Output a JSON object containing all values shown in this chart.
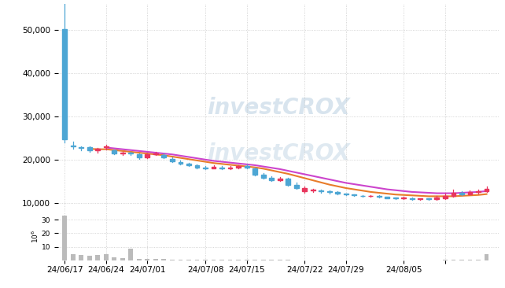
{
  "price_ylim": [
    8000,
    56000
  ],
  "volume_ylim": [
    0,
    36
  ],
  "xtick_positions": [
    0,
    5,
    10,
    17,
    22,
    29,
    34,
    41,
    46
  ],
  "xtick_labels": [
    "24/06/17",
    "24/06/24",
    "24/07/01",
    "24/07/08",
    "24/07/15",
    "24/07/22",
    "24/07/29",
    "24/08/05",
    ""
  ],
  "ytick_price": [
    10000,
    20000,
    30000,
    40000,
    50000
  ],
  "ytick_volume": [
    10,
    20,
    30
  ],
  "background_color": "#ffffff",
  "grid_color": "#c8c8c8",
  "candle_blue": "#4da6d4",
  "candle_red": "#e8365d",
  "volume_color": "#bbbbbb",
  "ma_short_color": "#e87c2a",
  "ma_long_color": "#cc44cc",
  "candles": [
    {
      "x": 0,
      "open": 24800,
      "close": 50200,
      "high": 56500,
      "low": 24000,
      "color": "blue"
    },
    {
      "x": 1,
      "open": 23200,
      "close": 23100,
      "high": 24200,
      "low": 22500,
      "color": "blue"
    },
    {
      "x": 2,
      "open": 22800,
      "close": 22700,
      "high": 23000,
      "low": 22200,
      "color": "blue"
    },
    {
      "x": 3,
      "open": 22800,
      "close": 22100,
      "high": 23000,
      "low": 21800,
      "color": "blue"
    },
    {
      "x": 4,
      "open": 22100,
      "close": 22500,
      "high": 22700,
      "low": 21600,
      "color": "red"
    },
    {
      "x": 5,
      "open": 22800,
      "close": 23000,
      "high": 23400,
      "low": 22400,
      "color": "red"
    },
    {
      "x": 6,
      "open": 22100,
      "close": 21500,
      "high": 22300,
      "low": 21300,
      "color": "blue"
    },
    {
      "x": 7,
      "open": 21500,
      "close": 21600,
      "high": 21800,
      "low": 21100,
      "color": "red"
    },
    {
      "x": 8,
      "open": 21500,
      "close": 21400,
      "high": 21700,
      "low": 21000,
      "color": "blue"
    },
    {
      "x": 9,
      "open": 21200,
      "close": 20600,
      "high": 21400,
      "low": 20200,
      "color": "blue"
    },
    {
      "x": 10,
      "open": 20600,
      "close": 21200,
      "high": 21500,
      "low": 20400,
      "color": "red"
    },
    {
      "x": 11,
      "open": 21300,
      "close": 21500,
      "high": 21800,
      "low": 21100,
      "color": "red"
    },
    {
      "x": 12,
      "open": 21100,
      "close": 20600,
      "high": 21400,
      "low": 20400,
      "color": "blue"
    },
    {
      "x": 13,
      "open": 20200,
      "close": 19600,
      "high": 20500,
      "low": 19400,
      "color": "blue"
    },
    {
      "x": 14,
      "open": 19500,
      "close": 19000,
      "high": 19800,
      "low": 18800,
      "color": "blue"
    },
    {
      "x": 15,
      "open": 19000,
      "close": 18700,
      "high": 19300,
      "low": 18500,
      "color": "blue"
    },
    {
      "x": 16,
      "open": 18700,
      "close": 18200,
      "high": 18900,
      "low": 18000,
      "color": "blue"
    },
    {
      "x": 17,
      "open": 18200,
      "close": 18000,
      "high": 18500,
      "low": 17800,
      "color": "blue"
    },
    {
      "x": 18,
      "open": 18000,
      "close": 18400,
      "high": 18600,
      "low": 17900,
      "color": "red"
    },
    {
      "x": 19,
      "open": 18200,
      "close": 17900,
      "high": 18500,
      "low": 17700,
      "color": "blue"
    },
    {
      "x": 20,
      "open": 17900,
      "close": 18200,
      "high": 18500,
      "low": 17700,
      "color": "red"
    },
    {
      "x": 21,
      "open": 18200,
      "close": 18500,
      "high": 18700,
      "low": 17900,
      "color": "red"
    },
    {
      "x": 22,
      "open": 18500,
      "close": 18200,
      "high": 18800,
      "low": 17900,
      "color": "blue"
    },
    {
      "x": 23,
      "open": 17900,
      "close": 16500,
      "high": 18200,
      "low": 16400,
      "color": "blue"
    },
    {
      "x": 24,
      "open": 16500,
      "close": 15800,
      "high": 16900,
      "low": 15600,
      "color": "blue"
    },
    {
      "x": 25,
      "open": 15800,
      "close": 15200,
      "high": 16200,
      "low": 15000,
      "color": "blue"
    },
    {
      "x": 26,
      "open": 15200,
      "close": 15600,
      "high": 15900,
      "low": 15000,
      "color": "red"
    },
    {
      "x": 27,
      "open": 15600,
      "close": 14200,
      "high": 15700,
      "low": 14000,
      "color": "blue"
    },
    {
      "x": 28,
      "open": 14200,
      "close": 13400,
      "high": 14600,
      "low": 13200,
      "color": "blue"
    },
    {
      "x": 29,
      "open": 13400,
      "close": 12700,
      "high": 13700,
      "low": 12300,
      "color": "red"
    },
    {
      "x": 30,
      "open": 12800,
      "close": 12900,
      "high": 13300,
      "low": 12500,
      "color": "red"
    },
    {
      "x": 31,
      "open": 12900,
      "close": 12600,
      "high": 13100,
      "low": 12300,
      "color": "blue"
    },
    {
      "x": 32,
      "open": 12600,
      "close": 12500,
      "high": 12800,
      "low": 12200,
      "color": "blue"
    },
    {
      "x": 33,
      "open": 12400,
      "close": 12200,
      "high": 12700,
      "low": 12000,
      "color": "blue"
    },
    {
      "x": 34,
      "open": 12000,
      "close": 11900,
      "high": 12200,
      "low": 11700,
      "color": "blue"
    },
    {
      "x": 35,
      "open": 11800,
      "close": 11700,
      "high": 12000,
      "low": 11500,
      "color": "blue"
    },
    {
      "x": 36,
      "open": 11600,
      "close": 11500,
      "high": 11800,
      "low": 11300,
      "color": "blue"
    },
    {
      "x": 37,
      "open": 11500,
      "close": 11600,
      "high": 11800,
      "low": 11300,
      "color": "red"
    },
    {
      "x": 38,
      "open": 11500,
      "close": 11300,
      "high": 11700,
      "low": 11200,
      "color": "blue"
    },
    {
      "x": 39,
      "open": 11300,
      "close": 11100,
      "high": 11400,
      "low": 11000,
      "color": "blue"
    },
    {
      "x": 40,
      "open": 11100,
      "close": 11000,
      "high": 11200,
      "low": 10800,
      "color": "blue"
    },
    {
      "x": 41,
      "open": 11000,
      "close": 11200,
      "high": 11400,
      "low": 10800,
      "color": "red"
    },
    {
      "x": 42,
      "open": 11000,
      "close": 10900,
      "high": 11200,
      "low": 10700,
      "color": "blue"
    },
    {
      "x": 43,
      "open": 10900,
      "close": 11000,
      "high": 11100,
      "low": 10700,
      "color": "red"
    },
    {
      "x": 44,
      "open": 10900,
      "close": 10900,
      "high": 11100,
      "low": 10700,
      "color": "blue"
    },
    {
      "x": 45,
      "open": 10900,
      "close": 11200,
      "high": 11500,
      "low": 10700,
      "color": "red"
    },
    {
      "x": 46,
      "open": 11000,
      "close": 11600,
      "high": 12100,
      "low": 10800,
      "color": "red"
    },
    {
      "x": 47,
      "open": 11600,
      "close": 12300,
      "high": 13100,
      "low": 11400,
      "color": "red"
    },
    {
      "x": 48,
      "open": 12300,
      "close": 12000,
      "high": 12700,
      "low": 11700,
      "color": "blue"
    },
    {
      "x": 49,
      "open": 12000,
      "close": 12400,
      "high": 12800,
      "low": 12000,
      "color": "red"
    },
    {
      "x": 50,
      "open": 12400,
      "close": 12700,
      "high": 13100,
      "low": 12200,
      "color": "red"
    },
    {
      "x": 51,
      "open": 12700,
      "close": 13300,
      "high": 13700,
      "low": 12500,
      "color": "red"
    }
  ],
  "volumes": [
    {
      "x": 0,
      "v": 33.0
    },
    {
      "x": 1,
      "v": 4.5
    },
    {
      "x": 2,
      "v": 4.0
    },
    {
      "x": 3,
      "v": 3.5
    },
    {
      "x": 4,
      "v": 4.0
    },
    {
      "x": 5,
      "v": 5.0
    },
    {
      "x": 6,
      "v": 2.5
    },
    {
      "x": 7,
      "v": 2.0
    },
    {
      "x": 8,
      "v": 8.5
    },
    {
      "x": 9,
      "v": 1.5
    },
    {
      "x": 10,
      "v": 1.5
    },
    {
      "x": 11,
      "v": 1.2
    },
    {
      "x": 12,
      "v": 1.0
    },
    {
      "x": 13,
      "v": 0.8
    },
    {
      "x": 14,
      "v": 0.7
    },
    {
      "x": 15,
      "v": 0.6
    },
    {
      "x": 16,
      "v": 0.5
    },
    {
      "x": 17,
      "v": 0.5
    },
    {
      "x": 18,
      "v": 0.5
    },
    {
      "x": 19,
      "v": 0.5
    },
    {
      "x": 20,
      "v": 0.5
    },
    {
      "x": 21,
      "v": 0.6
    },
    {
      "x": 22,
      "v": 0.5
    },
    {
      "x": 23,
      "v": 0.5
    },
    {
      "x": 24,
      "v": 0.5
    },
    {
      "x": 25,
      "v": 0.5
    },
    {
      "x": 26,
      "v": 0.5
    },
    {
      "x": 27,
      "v": 0.5
    },
    {
      "x": 28,
      "v": 0.4
    },
    {
      "x": 29,
      "v": 0.4
    },
    {
      "x": 30,
      "v": 0.4
    },
    {
      "x": 31,
      "v": 0.4
    },
    {
      "x": 32,
      "v": 0.4
    },
    {
      "x": 33,
      "v": 0.4
    },
    {
      "x": 34,
      "v": 0.4
    },
    {
      "x": 35,
      "v": 0.4
    },
    {
      "x": 36,
      "v": 0.4
    },
    {
      "x": 37,
      "v": 0.4
    },
    {
      "x": 38,
      "v": 0.4
    },
    {
      "x": 39,
      "v": 0.4
    },
    {
      "x": 40,
      "v": 0.4
    },
    {
      "x": 41,
      "v": 0.4
    },
    {
      "x": 42,
      "v": 0.4
    },
    {
      "x": 43,
      "v": 0.4
    },
    {
      "x": 44,
      "v": 0.4
    },
    {
      "x": 45,
      "v": 0.4
    },
    {
      "x": 46,
      "v": 0.5
    },
    {
      "x": 47,
      "v": 0.6
    },
    {
      "x": 48,
      "v": 0.5
    },
    {
      "x": 49,
      "v": 0.5
    },
    {
      "x": 50,
      "v": 0.5
    },
    {
      "x": 51,
      "v": 4.5
    }
  ],
  "ma_short_x": [
    3,
    4,
    5,
    6,
    7,
    8,
    9,
    10,
    11,
    12,
    13,
    14,
    15,
    16,
    17,
    18,
    19,
    20,
    21,
    22,
    23,
    24,
    25,
    26,
    27,
    28,
    29,
    30,
    31,
    32,
    33,
    34,
    35,
    36,
    37,
    38,
    39,
    40,
    41,
    42,
    43,
    44,
    45,
    46,
    47,
    48,
    49,
    50,
    51
  ],
  "ma_short_y": [
    22500,
    22400,
    22400,
    22200,
    22000,
    21800,
    21600,
    21400,
    21200,
    21000,
    20700,
    20400,
    20100,
    19800,
    19500,
    19200,
    19000,
    18800,
    18600,
    18400,
    18200,
    17900,
    17500,
    17100,
    16700,
    16200,
    15700,
    15200,
    14700,
    14200,
    13800,
    13400,
    13100,
    12800,
    12500,
    12300,
    12100,
    11900,
    11800,
    11700,
    11600,
    11500,
    11500,
    11500,
    11500,
    11600,
    11700,
    11800,
    12000
  ],
  "ma_long_x": [
    5,
    6,
    7,
    8,
    9,
    10,
    11,
    12,
    13,
    14,
    15,
    16,
    17,
    18,
    19,
    20,
    21,
    22,
    23,
    24,
    25,
    26,
    27,
    28,
    29,
    30,
    31,
    32,
    33,
    34,
    35,
    36,
    37,
    38,
    39,
    40,
    41,
    42,
    43,
    44,
    45,
    46,
    47,
    48,
    49,
    50,
    51
  ],
  "ma_long_y": [
    22800,
    22600,
    22400,
    22200,
    22000,
    21800,
    21600,
    21400,
    21200,
    20900,
    20600,
    20300,
    20000,
    19700,
    19500,
    19300,
    19100,
    18900,
    18700,
    18400,
    18100,
    17800,
    17400,
    17000,
    16600,
    16200,
    15800,
    15400,
    15000,
    14600,
    14300,
    14000,
    13700,
    13400,
    13100,
    12900,
    12700,
    12500,
    12400,
    12300,
    12200,
    12200,
    12200,
    12300,
    12400,
    12500,
    12700
  ]
}
